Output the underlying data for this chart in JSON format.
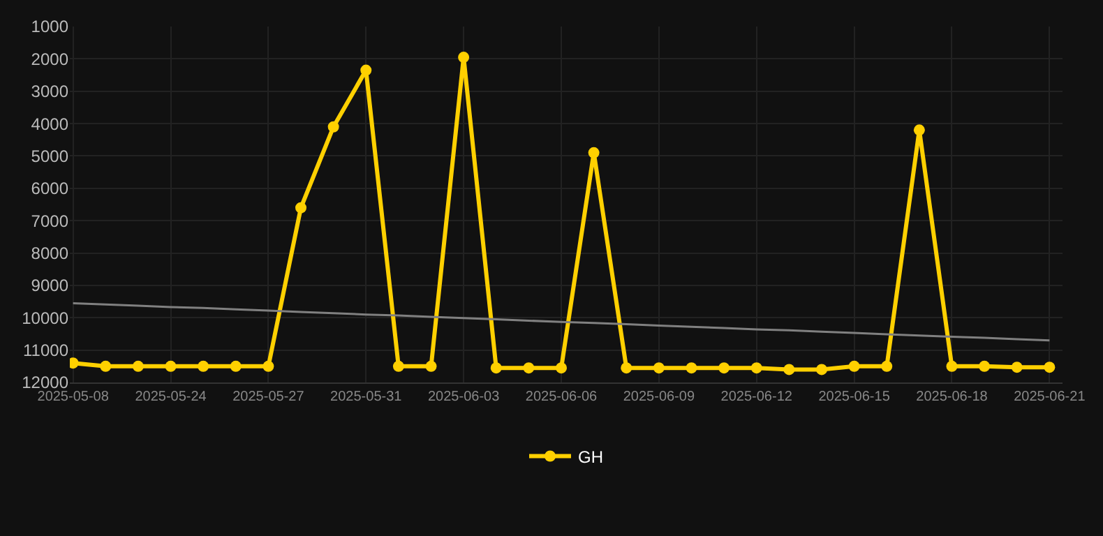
{
  "chart_data": {
    "type": "line",
    "categories": [
      "2025-05-08",
      null,
      null,
      "2025-05-24",
      null,
      null,
      "2025-05-27",
      null,
      null,
      "2025-05-31",
      null,
      null,
      "2025-06-03",
      null,
      null,
      "2025-06-06",
      null,
      null,
      "2025-06-09",
      null,
      null,
      "2025-06-12",
      null,
      null,
      "2025-06-15",
      null,
      null,
      "2025-06-18",
      null,
      null,
      "2025-06-21"
    ],
    "series": [
      {
        "name": "GH",
        "color": "#ffd000",
        "marker": "circle",
        "values": [
          11400,
          11500,
          11500,
          11500,
          11500,
          11500,
          11500,
          6600,
          4100,
          2350,
          11500,
          11500,
          1950,
          11550,
          11550,
          11550,
          4900,
          11550,
          11550,
          11550,
          11550,
          11550,
          11600,
          11600,
          11500,
          11500,
          4200,
          11500,
          11500,
          11530,
          11530
        ]
      },
      {
        "type": "line",
        "color": "#808080",
        "marker": "none",
        "values": [
          9550,
          9590,
          9630,
          9670,
          9700,
          9740,
          9780,
          9820,
          9860,
          9900,
          9930,
          9970,
          10010,
          10050,
          10090,
          10130,
          10160,
          10200,
          10240,
          10280,
          10320,
          10360,
          10390,
          10430,
          10470,
          10510,
          10550,
          10590,
          10620,
          10660,
          10700
        ]
      }
    ],
    "ylim": [
      12000,
      1000
    ],
    "yticks": [
      1000,
      2000,
      3000,
      4000,
      5000,
      6000,
      7000,
      8000,
      9000,
      10000,
      11000,
      12000
    ],
    "grid": true,
    "legend": "bottom"
  }
}
